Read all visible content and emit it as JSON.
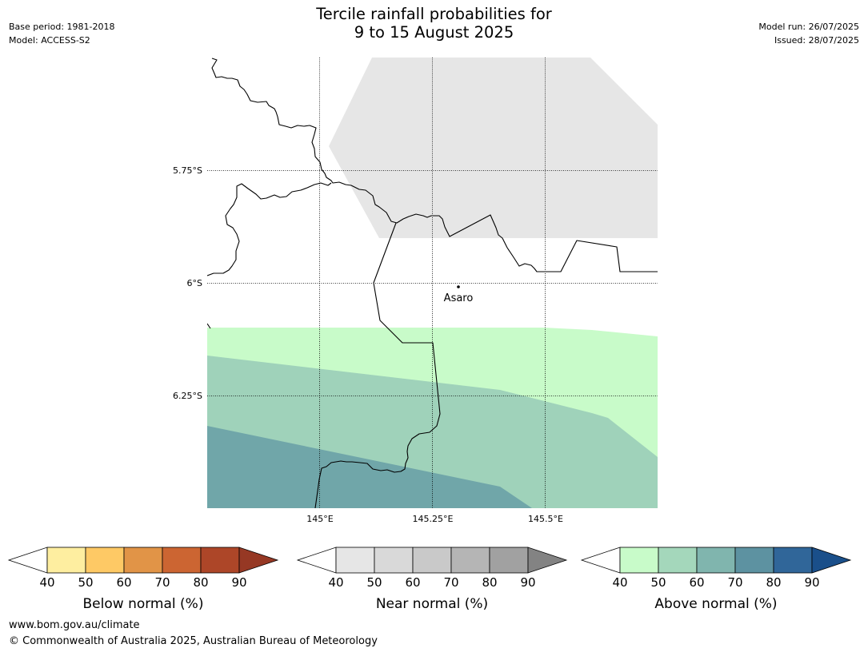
{
  "header": {
    "title_line1": "Tercile rainfall probabilities for",
    "title_line2": "9 to 15 August 2025",
    "base_period": "Base period: 1981-2018",
    "model": "Model: ACCESS-S2",
    "model_run": "Model run: 26/07/2025",
    "issued": "Issued: 28/07/2025"
  },
  "map": {
    "lat_labels": [
      "5.75°S",
      "6°S",
      "6.25°S"
    ],
    "lon_labels": [
      "145°E",
      "145.25°E",
      "145.5°E"
    ],
    "place": "Asaro"
  },
  "colorbars": [
    {
      "label": "Below normal (%)",
      "ticks": [
        "40",
        "50",
        "60",
        "70",
        "80",
        "90"
      ],
      "low_color": "#ffffff",
      "colors": [
        "#feeea0",
        "#fec965",
        "#e19447",
        "#cc6532",
        "#ad4628"
      ],
      "high_color": "#963824"
    },
    {
      "label": "Near normal (%)",
      "ticks": [
        "40",
        "50",
        "60",
        "70",
        "80",
        "90"
      ],
      "low_color": "#ffffff",
      "colors": [
        "#e6e6e6",
        "#d9d9d9",
        "#c9c9c9",
        "#b5b5b5",
        "#a1a1a1"
      ],
      "high_color": "#838383"
    },
    {
      "label": "Above normal (%)",
      "ticks": [
        "40",
        "50",
        "60",
        "70",
        "80",
        "90"
      ],
      "low_color": "#ffffff",
      "colors": [
        "#c8fbc9",
        "#a4d7bb",
        "#80b5ae",
        "#5d92a1",
        "#306699"
      ],
      "high_color": "#1a4f8a"
    }
  ],
  "footer": {
    "url": "www.bom.gov.au/climate",
    "copyright": "© Commonwealth of Australia 2025, Australian Bureau of Meteorology"
  }
}
